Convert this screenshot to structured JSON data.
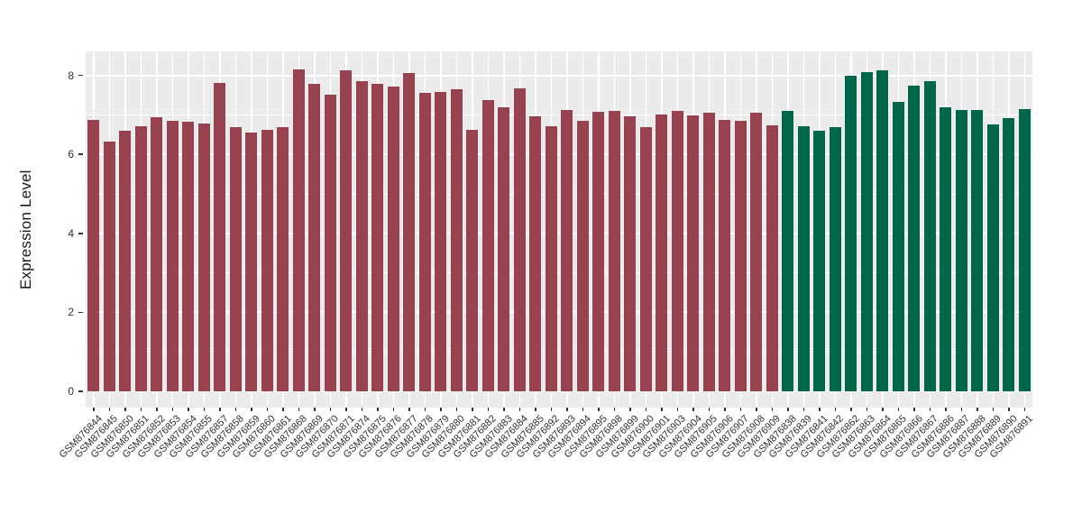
{
  "chart_data": {
    "type": "bar",
    "title": "",
    "xlabel": "",
    "ylabel": "Expression Level",
    "ylim": [
      0,
      8.6
    ],
    "y_major_ticks": [
      0,
      2,
      4,
      6,
      8
    ],
    "y_minor_ticks": [
      1,
      3,
      5,
      7
    ],
    "grid": "on",
    "legend": "none",
    "panel_bg": "#EBEBEB",
    "grid_color": "#FFFFFF",
    "tick_color": "#333333",
    "groups": [
      {
        "name": "group-maroon",
        "color": "#97424F"
      },
      {
        "name": "group-green",
        "color": "#006649"
      }
    ],
    "bars": [
      {
        "label": "GSM876844",
        "value": 6.88,
        "group": 0
      },
      {
        "label": "GSM876845",
        "value": 6.33,
        "group": 0
      },
      {
        "label": "GSM876850",
        "value": 6.59,
        "group": 0
      },
      {
        "label": "GSM876851",
        "value": 6.71,
        "group": 0
      },
      {
        "label": "GSM876852",
        "value": 6.94,
        "group": 0
      },
      {
        "label": "GSM876853",
        "value": 6.86,
        "group": 0
      },
      {
        "label": "GSM876854",
        "value": 6.82,
        "group": 0
      },
      {
        "label": "GSM876855",
        "value": 6.77,
        "group": 0
      },
      {
        "label": "GSM876857",
        "value": 7.8,
        "group": 0
      },
      {
        "label": "GSM876858",
        "value": 6.7,
        "group": 0
      },
      {
        "label": "GSM876859",
        "value": 6.55,
        "group": 0
      },
      {
        "label": "GSM876860",
        "value": 6.62,
        "group": 0
      },
      {
        "label": "GSM876861",
        "value": 6.69,
        "group": 0
      },
      {
        "label": "GSM876868",
        "value": 8.15,
        "group": 0
      },
      {
        "label": "GSM876869",
        "value": 7.79,
        "group": 0
      },
      {
        "label": "GSM876870",
        "value": 7.52,
        "group": 0
      },
      {
        "label": "GSM876871",
        "value": 8.13,
        "group": 0
      },
      {
        "label": "GSM876874",
        "value": 7.86,
        "group": 0
      },
      {
        "label": "GSM876875",
        "value": 7.79,
        "group": 0
      },
      {
        "label": "GSM876876",
        "value": 7.71,
        "group": 0
      },
      {
        "label": "GSM876877",
        "value": 8.07,
        "group": 0
      },
      {
        "label": "GSM876878",
        "value": 7.56,
        "group": 0
      },
      {
        "label": "GSM876879",
        "value": 7.57,
        "group": 0
      },
      {
        "label": "GSM876880",
        "value": 7.65,
        "group": 0
      },
      {
        "label": "GSM876881",
        "value": 6.63,
        "group": 0
      },
      {
        "label": "GSM876882",
        "value": 7.37,
        "group": 0
      },
      {
        "label": "GSM876883",
        "value": 7.19,
        "group": 0
      },
      {
        "label": "GSM876884",
        "value": 7.67,
        "group": 0
      },
      {
        "label": "GSM876885",
        "value": 6.97,
        "group": 0
      },
      {
        "label": "GSM876892",
        "value": 6.71,
        "group": 0
      },
      {
        "label": "GSM876893",
        "value": 7.12,
        "group": 0
      },
      {
        "label": "GSM876894",
        "value": 6.85,
        "group": 0
      },
      {
        "label": "GSM876895",
        "value": 7.07,
        "group": 0
      },
      {
        "label": "GSM876898",
        "value": 7.1,
        "group": 0
      },
      {
        "label": "GSM876899",
        "value": 6.97,
        "group": 0
      },
      {
        "label": "GSM876900",
        "value": 6.68,
        "group": 0
      },
      {
        "label": "GSM876901",
        "value": 7.01,
        "group": 0
      },
      {
        "label": "GSM876903",
        "value": 7.1,
        "group": 0
      },
      {
        "label": "GSM876904",
        "value": 6.98,
        "group": 0
      },
      {
        "label": "GSM876905",
        "value": 7.06,
        "group": 0
      },
      {
        "label": "GSM876906",
        "value": 6.88,
        "group": 0
      },
      {
        "label": "GSM876907",
        "value": 6.85,
        "group": 0
      },
      {
        "label": "GSM876908",
        "value": 7.05,
        "group": 0
      },
      {
        "label": "GSM876909",
        "value": 6.74,
        "group": 0
      },
      {
        "label": "GSM876838",
        "value": 7.09,
        "group": 1
      },
      {
        "label": "GSM876839",
        "value": 6.71,
        "group": 1
      },
      {
        "label": "GSM876841",
        "value": 6.6,
        "group": 1
      },
      {
        "label": "GSM876842",
        "value": 6.69,
        "group": 1
      },
      {
        "label": "GSM876862",
        "value": 7.99,
        "group": 1
      },
      {
        "label": "GSM876863",
        "value": 8.08,
        "group": 1
      },
      {
        "label": "GSM876864",
        "value": 8.12,
        "group": 1
      },
      {
        "label": "GSM876865",
        "value": 7.32,
        "group": 1
      },
      {
        "label": "GSM876866",
        "value": 7.73,
        "group": 1
      },
      {
        "label": "GSM876867",
        "value": 7.86,
        "group": 1
      },
      {
        "label": "GSM876886",
        "value": 7.19,
        "group": 1
      },
      {
        "label": "GSM876887",
        "value": 7.13,
        "group": 1
      },
      {
        "label": "GSM876888",
        "value": 7.12,
        "group": 1
      },
      {
        "label": "GSM876889",
        "value": 6.76,
        "group": 1
      },
      {
        "label": "GSM876890",
        "value": 6.92,
        "group": 1
      },
      {
        "label": "GSM876891",
        "value": 7.15,
        "group": 1
      }
    ]
  }
}
